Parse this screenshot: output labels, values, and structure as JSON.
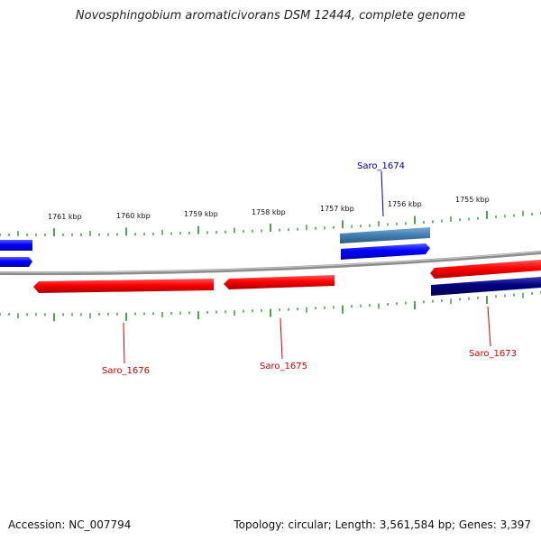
{
  "title": "Novosphingobium aromaticivorans DSM 12444, complete genome",
  "footer": {
    "accession": "Accession: NC_007794",
    "summary": "Topology: circular; Length: 3,561,584 bp; Genes: 3,397"
  },
  "scale_labels": [
    "1761 kbp",
    "1760 kbp",
    "1759 kbp",
    "1758 kbp",
    "1757 kbp",
    "1756 kbp",
    "1755 kbp"
  ],
  "gene_labels": {
    "saro_1674": "Saro_1674",
    "saro_1673": "Saro_1673",
    "saro_1675": "Saro_1675",
    "saro_1676": "Saro_1676"
  },
  "colors": {
    "backbone": "#8c8c8c",
    "forward_gene": "#0000ff",
    "forward_gene_alt": "#4682b4",
    "reverse_gene": "#ff0000",
    "reverse_gene_alt": "#000080",
    "ticks": "#228b22",
    "label_forward": "#00008b",
    "label_reverse": "#cc0000"
  }
}
